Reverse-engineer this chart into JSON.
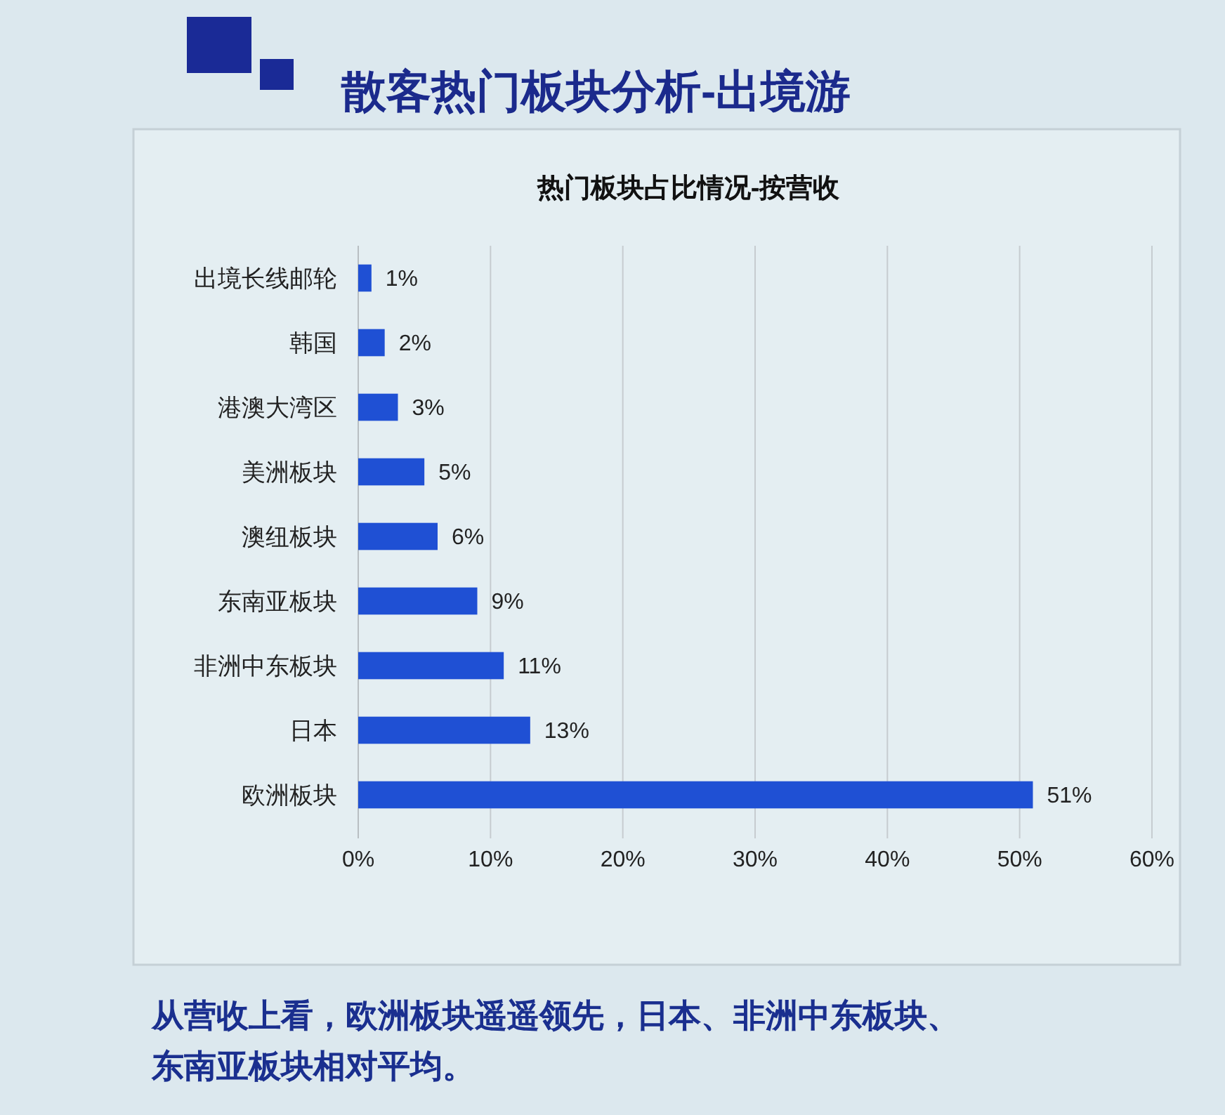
{
  "chart_data": {
    "type": "bar",
    "orientation": "horizontal",
    "title": "散客热门板块分析-出境游",
    "subtitle": "热门板块占比情况-按营收",
    "categories": [
      "出境长线邮轮",
      "韩国",
      "港澳大湾区",
      "美洲板块",
      "澳纽板块",
      "东南亚板块",
      "非洲中东板块",
      "日本",
      "欧洲板块"
    ],
    "values": [
      1,
      2,
      3,
      5,
      6,
      9,
      11,
      13,
      51
    ],
    "value_labels": [
      "1%",
      "2%",
      "3%",
      "5%",
      "6%",
      "9%",
      "11%",
      "13%",
      "51%"
    ],
    "color": "#1f50d4",
    "xlim": [
      0,
      60
    ],
    "xticks": [
      {
        "value": 0,
        "label": "0%"
      },
      {
        "value": 10,
        "label": "10%"
      },
      {
        "value": 20,
        "label": "20%"
      },
      {
        "value": 30,
        "label": "30%"
      },
      {
        "value": 40,
        "label": "40%"
      },
      {
        "value": 50,
        "label": "50%"
      },
      {
        "value": 60,
        "label": "60%"
      }
    ],
    "grid": "x",
    "annotations": [
      "从营收上看，欧洲板块遥遥领先，日本、非洲中东板块、东南亚板块相对平均。"
    ]
  }
}
